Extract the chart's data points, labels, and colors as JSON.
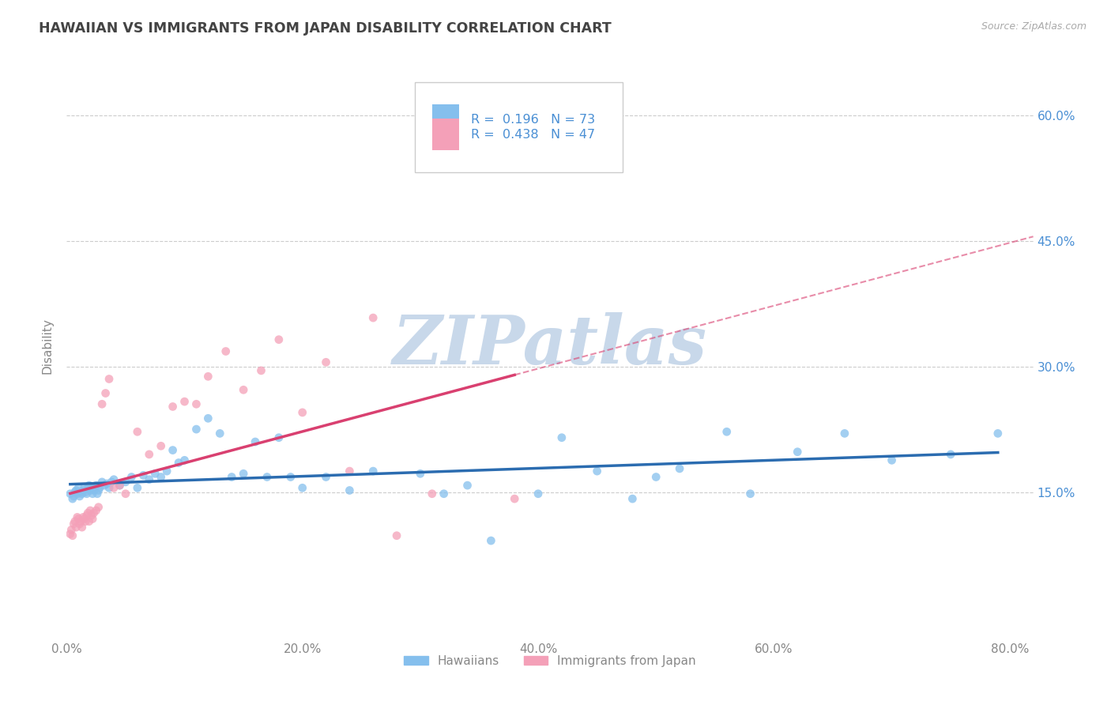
{
  "title": "HAWAIIAN VS IMMIGRANTS FROM JAPAN DISABILITY CORRELATION CHART",
  "source": "Source: ZipAtlas.com",
  "ylabel_text": "Disability",
  "xlim": [
    0.0,
    0.82
  ],
  "ylim": [
    -0.02,
    0.67
  ],
  "xtick_labels": [
    "0.0%",
    "20.0%",
    "40.0%",
    "60.0%",
    "80.0%"
  ],
  "xtick_vals": [
    0.0,
    0.2,
    0.4,
    0.6,
    0.8
  ],
  "ytick_vals": [
    0.15,
    0.3,
    0.45,
    0.6
  ],
  "right_ytick_labels": [
    "15.0%",
    "30.0%",
    "45.0%",
    "60.0%"
  ],
  "legend_label1": "Hawaiians",
  "legend_label2": "Immigrants from Japan",
  "r1": 0.196,
  "n1": 73,
  "r2": 0.438,
  "n2": 47,
  "color1": "#85BFED",
  "color2": "#F4A0B8",
  "line_color1": "#2B6CB0",
  "line_color2": "#D94070",
  "watermark_color": "#C8D8EA",
  "title_color": "#444444",
  "axis_color": "#888888",
  "blue_text_color": "#4A8FD4",
  "scatter1_x": [
    0.003,
    0.005,
    0.006,
    0.007,
    0.008,
    0.009,
    0.01,
    0.011,
    0.012,
    0.013,
    0.014,
    0.015,
    0.016,
    0.017,
    0.018,
    0.019,
    0.02,
    0.021,
    0.022,
    0.023,
    0.024,
    0.025,
    0.026,
    0.027,
    0.028,
    0.03,
    0.032,
    0.034,
    0.036,
    0.038,
    0.04,
    0.045,
    0.05,
    0.055,
    0.06,
    0.065,
    0.07,
    0.075,
    0.08,
    0.085,
    0.09,
    0.095,
    0.1,
    0.11,
    0.12,
    0.13,
    0.14,
    0.15,
    0.16,
    0.17,
    0.18,
    0.19,
    0.2,
    0.22,
    0.24,
    0.26,
    0.3,
    0.32,
    0.34,
    0.36,
    0.4,
    0.42,
    0.45,
    0.48,
    0.5,
    0.52,
    0.56,
    0.58,
    0.62,
    0.66,
    0.7,
    0.75,
    0.79
  ],
  "scatter1_y": [
    0.148,
    0.142,
    0.145,
    0.15,
    0.152,
    0.148,
    0.155,
    0.145,
    0.15,
    0.148,
    0.152,
    0.155,
    0.15,
    0.148,
    0.155,
    0.158,
    0.152,
    0.155,
    0.148,
    0.152,
    0.155,
    0.158,
    0.148,
    0.152,
    0.155,
    0.162,
    0.158,
    0.16,
    0.155,
    0.162,
    0.165,
    0.158,
    0.162,
    0.168,
    0.155,
    0.17,
    0.165,
    0.172,
    0.168,
    0.175,
    0.2,
    0.185,
    0.188,
    0.225,
    0.238,
    0.22,
    0.168,
    0.172,
    0.21,
    0.168,
    0.215,
    0.168,
    0.155,
    0.168,
    0.152,
    0.175,
    0.172,
    0.148,
    0.158,
    0.092,
    0.148,
    0.215,
    0.175,
    0.142,
    0.168,
    0.178,
    0.222,
    0.148,
    0.198,
    0.22,
    0.188,
    0.195,
    0.22
  ],
  "scatter2_x": [
    0.003,
    0.004,
    0.005,
    0.006,
    0.007,
    0.008,
    0.009,
    0.01,
    0.011,
    0.012,
    0.013,
    0.014,
    0.015,
    0.016,
    0.017,
    0.018,
    0.019,
    0.02,
    0.021,
    0.022,
    0.023,
    0.025,
    0.027,
    0.03,
    0.033,
    0.036,
    0.04,
    0.045,
    0.05,
    0.06,
    0.07,
    0.08,
    0.09,
    0.1,
    0.11,
    0.12,
    0.135,
    0.15,
    0.165,
    0.18,
    0.2,
    0.22,
    0.24,
    0.26,
    0.28,
    0.31,
    0.38
  ],
  "scatter2_y": [
    0.1,
    0.105,
    0.098,
    0.112,
    0.115,
    0.108,
    0.12,
    0.118,
    0.112,
    0.115,
    0.108,
    0.12,
    0.118,
    0.115,
    0.122,
    0.125,
    0.115,
    0.128,
    0.122,
    0.118,
    0.125,
    0.128,
    0.132,
    0.255,
    0.268,
    0.285,
    0.155,
    0.158,
    0.148,
    0.222,
    0.195,
    0.205,
    0.252,
    0.258,
    0.255,
    0.288,
    0.318,
    0.272,
    0.295,
    0.332,
    0.245,
    0.305,
    0.175,
    0.358,
    0.098,
    0.148,
    0.142
  ]
}
